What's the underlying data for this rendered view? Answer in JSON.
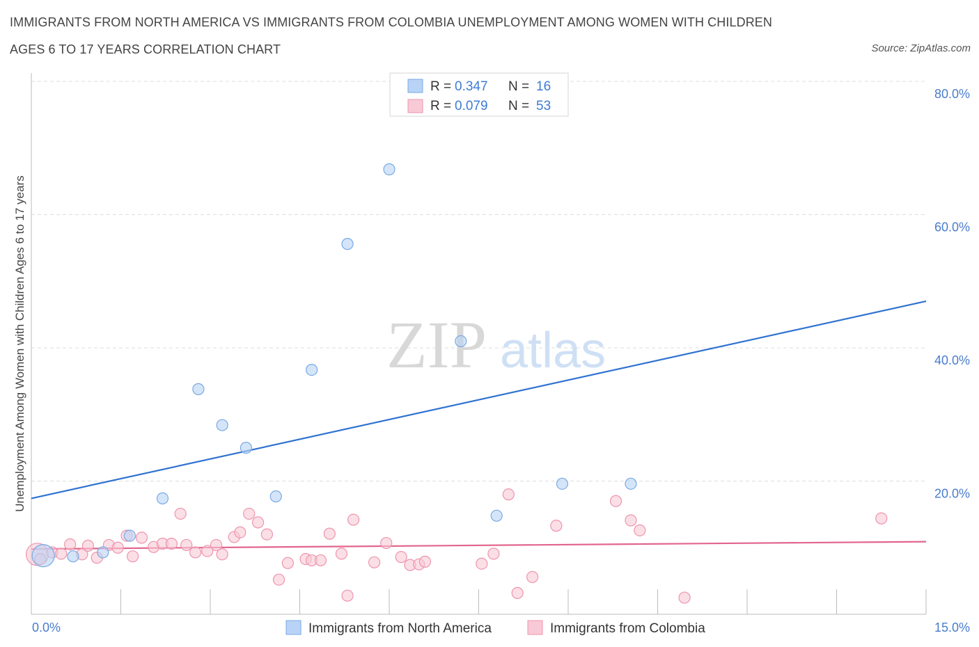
{
  "title_line1": "IMMIGRANTS FROM NORTH AMERICA VS IMMIGRANTS FROM COLOMBIA UNEMPLOYMENT AMONG WOMEN WITH CHILDREN",
  "title_line2": "AGES 6 TO 17 YEARS CORRELATION CHART",
  "source": "Source: ZipAtlas.com",
  "watermark": {
    "zip": "ZIP",
    "atlas": "atlas"
  },
  "colors": {
    "blue_fill": "#b8d3f5",
    "blue_stroke": "#7aa8e3",
    "blue_line": "#2f72d1",
    "pink_fill": "#f8c9d6",
    "pink_stroke": "#ee94ad",
    "pink_line": "#e2658d"
  },
  "legend": {
    "r_label": "R =",
    "n_label": "N =",
    "rows": [
      {
        "r": "0.347",
        "n": "16"
      },
      {
        "r": "0.079",
        "n": "53"
      }
    ]
  },
  "chart_data": {
    "type": "scatter",
    "title": "IMMIGRANTS FROM NORTH AMERICA VS IMMIGRANTS FROM COLOMBIA UNEMPLOYMENT AMONG WOMEN WITH CHILDREN AGES 6 TO 17 YEARS CORRELATION CHART",
    "xlabel": "",
    "ylabel": "Unemployment Among Women with Children Ages 6 to 17 years",
    "xlim": [
      0,
      15
    ],
    "ylim": [
      0,
      80
    ],
    "x_tick_labels": [
      "0.0%",
      "15.0%"
    ],
    "y_tick_labels": [
      "20.0%",
      "40.0%",
      "60.0%",
      "80.0%"
    ],
    "y_tick_values": [
      20,
      40,
      60,
      80
    ],
    "grid": true,
    "legend_position": "top-center",
    "series": [
      {
        "name": "Immigrants from North America",
        "trend": {
          "x": [
            0,
            15
          ],
          "y": [
            17.4,
            47.0
          ]
        },
        "points": [
          {
            "x": 0.2,
            "y": 8.8,
            "big": true
          },
          {
            "x": 0.7,
            "y": 8.7
          },
          {
            "x": 1.2,
            "y": 9.3
          },
          {
            "x": 1.65,
            "y": 11.8
          },
          {
            "x": 2.2,
            "y": 17.4
          },
          {
            "x": 2.8,
            "y": 33.8
          },
          {
            "x": 3.2,
            "y": 28.4
          },
          {
            "x": 3.6,
            "y": 25.0
          },
          {
            "x": 4.1,
            "y": 17.7
          },
          {
            "x": 4.7,
            "y": 36.7
          },
          {
            "x": 5.3,
            "y": 55.6
          },
          {
            "x": 6.0,
            "y": 66.8
          },
          {
            "x": 7.2,
            "y": 41.0
          },
          {
            "x": 7.8,
            "y": 14.8
          },
          {
            "x": 8.9,
            "y": 19.6
          },
          {
            "x": 10.05,
            "y": 19.6
          }
        ]
      },
      {
        "name": "Immigrants from Colombia",
        "trend": {
          "x": [
            0,
            15
          ],
          "y": [
            9.8,
            10.9
          ]
        },
        "points": [
          {
            "x": 0.1,
            "y": 9.0,
            "big": true
          },
          {
            "x": 0.15,
            "y": 8.3
          },
          {
            "x": 0.35,
            "y": 9.3
          },
          {
            "x": 0.5,
            "y": 9.1
          },
          {
            "x": 0.65,
            "y": 10.5
          },
          {
            "x": 0.85,
            "y": 9.0
          },
          {
            "x": 0.95,
            "y": 10.3
          },
          {
            "x": 1.1,
            "y": 8.5
          },
          {
            "x": 1.3,
            "y": 10.4
          },
          {
            "x": 1.45,
            "y": 10.0
          },
          {
            "x": 1.6,
            "y": 11.8
          },
          {
            "x": 1.7,
            "y": 8.7
          },
          {
            "x": 1.85,
            "y": 11.5
          },
          {
            "x": 2.05,
            "y": 10.1
          },
          {
            "x": 2.2,
            "y": 10.6
          },
          {
            "x": 2.35,
            "y": 10.6
          },
          {
            "x": 2.5,
            "y": 15.1
          },
          {
            "x": 2.6,
            "y": 10.4
          },
          {
            "x": 2.75,
            "y": 9.3
          },
          {
            "x": 2.95,
            "y": 9.5
          },
          {
            "x": 3.1,
            "y": 10.4
          },
          {
            "x": 3.2,
            "y": 9.0
          },
          {
            "x": 3.4,
            "y": 11.6
          },
          {
            "x": 3.5,
            "y": 12.3
          },
          {
            "x": 3.65,
            "y": 15.1
          },
          {
            "x": 3.8,
            "y": 13.8
          },
          {
            "x": 3.95,
            "y": 12.0
          },
          {
            "x": 4.15,
            "y": 5.2
          },
          {
            "x": 4.3,
            "y": 7.7
          },
          {
            "x": 4.6,
            "y": 8.3
          },
          {
            "x": 4.7,
            "y": 8.1
          },
          {
            "x": 4.85,
            "y": 8.1
          },
          {
            "x": 5.0,
            "y": 12.1
          },
          {
            "x": 5.2,
            "y": 9.1
          },
          {
            "x": 5.3,
            "y": 2.8
          },
          {
            "x": 5.4,
            "y": 14.2
          },
          {
            "x": 5.75,
            "y": 7.8
          },
          {
            "x": 5.95,
            "y": 10.7
          },
          {
            "x": 6.2,
            "y": 8.6
          },
          {
            "x": 6.35,
            "y": 7.4
          },
          {
            "x": 6.5,
            "y": 7.5
          },
          {
            "x": 6.6,
            "y": 7.9
          },
          {
            "x": 7.55,
            "y": 7.6
          },
          {
            "x": 7.75,
            "y": 9.1
          },
          {
            "x": 8.0,
            "y": 18.0
          },
          {
            "x": 8.15,
            "y": 3.2
          },
          {
            "x": 8.4,
            "y": 5.6
          },
          {
            "x": 8.8,
            "y": 13.3
          },
          {
            "x": 9.8,
            "y": 17.0
          },
          {
            "x": 10.05,
            "y": 14.1
          },
          {
            "x": 10.2,
            "y": 12.6
          },
          {
            "x": 10.95,
            "y": 2.5
          },
          {
            "x": 14.25,
            "y": 14.4
          }
        ]
      }
    ]
  }
}
